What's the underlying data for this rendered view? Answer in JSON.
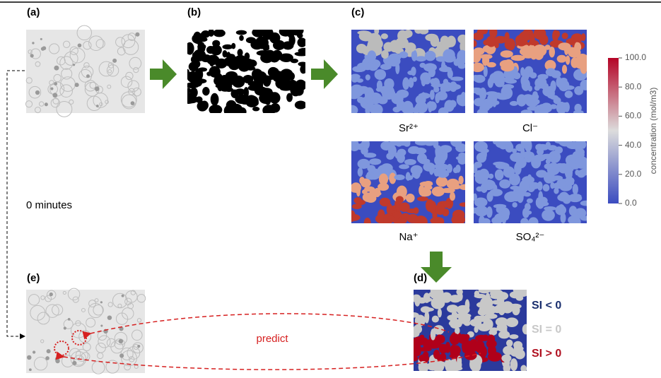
{
  "panels": {
    "a": "(a)",
    "b": "(b)",
    "c": "(c)",
    "d": "(d)",
    "e": "(e)"
  },
  "ions": [
    "Sr²⁺",
    "Cl⁻",
    "Na⁺",
    "SO₄²⁻"
  ],
  "colorbar": {
    "label": "concentration (mol/m3)",
    "lim": [
      0,
      100
    ],
    "ticks": [
      {
        "value": 0,
        "label": "0.0"
      },
      {
        "value": 20,
        "label": "20.0"
      },
      {
        "value": 40,
        "label": "40.0"
      },
      {
        "value": 60,
        "label": "60.0"
      },
      {
        "value": 80,
        "label": "80.0"
      },
      {
        "value": 100,
        "label": "100.0"
      }
    ]
  },
  "time_label": "0 minutes",
  "arrow_label": "predict",
  "si_labels": [
    "SI < 0",
    "SI = 0",
    "SI > 0"
  ]
}
